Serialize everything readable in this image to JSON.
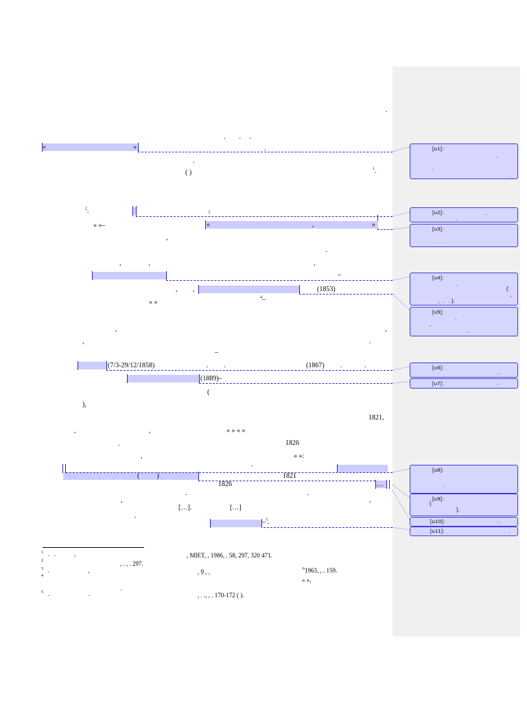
{
  "comments": [
    {
      "label": "[u1]:"
    },
    {
      "label": "[u2]:"
    },
    {
      "label": "[u3]:"
    },
    {
      "label": "[u4]:"
    },
    {
      "label": "[u5]:"
    },
    {
      "label": "[u6]:"
    },
    {
      "label": "[u7]:"
    },
    {
      "label": "[u8]:"
    },
    {
      "label": "[u9]:"
    },
    {
      "label": "[u10]:"
    },
    {
      "label": "[u11]:"
    }
  ],
  "body": {
    "l1_open_quote": "«",
    "l1_close_quote": "»",
    "paren": "(        )",
    "l4_quote": "«          »–",
    "l4_quote_b_open": "«",
    "l4_quote_b_mid": ",",
    "l4_quote_b_close": "»",
    "year_1853": "(1853)",
    "l7_quote": "«                          »",
    "fn4_marker": "–",
    "dates_1858": "(7/3-29/12/1858)",
    "year_1867": "(1867)",
    "year_1889": "(1889)–",
    "open_paren": "(",
    "close_paren_comma": "),",
    "year_1821a": "1821,",
    "quotes_row": "«          »      «          »",
    "year_1826a": "1826",
    "quote_colon": "«                        »:",
    "year_1821b": "1821",
    "year_1826b": "1826",
    "ellipsis_a": "[…].",
    "ellipsis_b": "[…]",
    "ellipsis_c": "…",
    "dash_a": "–",
    "dash_b": "–",
    "dash_c": "–"
  },
  "footnotes": {
    "n1": "1",
    "n2": "2",
    "n3": "3",
    "n4": "4",
    "n5": "5",
    "n6": "6",
    "fn1_text": ", MIET,          , 1986,   . 58, 297, 320        471.",
    "fn2_text": ",    .              ,   . 297.",
    "fn3_text": ", 9          ,                               ,",
    "fn3_year": "1963,      ,   . 159.",
    "fn4_text": "«              »,",
    "fn5_text": ",    . .,     ,   . 170-172 (                         )."
  }
}
